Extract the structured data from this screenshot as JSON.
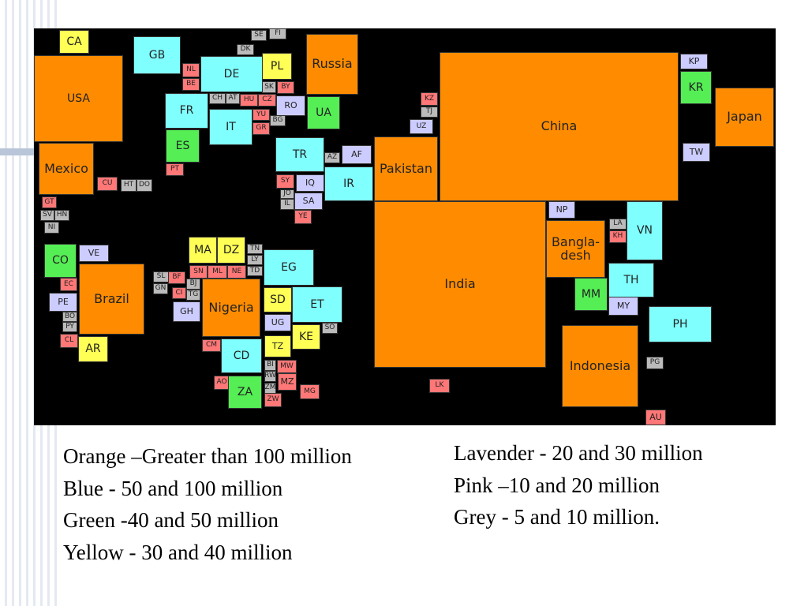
{
  "colors": {
    "orange": "#ff8c00",
    "blue": "#80ffff",
    "green": "#55ee55",
    "yellow": "#ffff55",
    "lavender": "#ccccff",
    "pink": "#ff7777",
    "grey": "#bbbbbb"
  },
  "countries": [
    {
      "code": "CA",
      "cat": "yellow"
    },
    {
      "code": "USA",
      "cat": "orange"
    },
    {
      "code": "Mexico",
      "cat": "orange"
    },
    {
      "code": "CU",
      "cat": "pink"
    },
    {
      "code": "HT",
      "cat": "grey"
    },
    {
      "code": "DO",
      "cat": "grey"
    },
    {
      "code": "GT",
      "cat": "pink"
    },
    {
      "code": "SV",
      "cat": "grey"
    },
    {
      "code": "HN",
      "cat": "grey"
    },
    {
      "code": "NI",
      "cat": "grey"
    },
    {
      "code": "CO",
      "cat": "green"
    },
    {
      "code": "VE",
      "cat": "lavender"
    },
    {
      "code": "EC",
      "cat": "pink"
    },
    {
      "code": "PE",
      "cat": "lavender"
    },
    {
      "code": "BO",
      "cat": "grey"
    },
    {
      "code": "PY",
      "cat": "grey"
    },
    {
      "code": "CL",
      "cat": "pink"
    },
    {
      "code": "Brazil",
      "cat": "orange"
    },
    {
      "code": "AR",
      "cat": "yellow"
    },
    {
      "code": "GB",
      "cat": "blue"
    },
    {
      "code": "NL",
      "cat": "pink"
    },
    {
      "code": "BE",
      "cat": "pink"
    },
    {
      "code": "DE",
      "cat": "blue"
    },
    {
      "code": "FR",
      "cat": "blue"
    },
    {
      "code": "ES",
      "cat": "green"
    },
    {
      "code": "PT",
      "cat": "pink"
    },
    {
      "code": "CH",
      "cat": "grey"
    },
    {
      "code": "AT",
      "cat": "grey"
    },
    {
      "code": "IT",
      "cat": "blue"
    },
    {
      "code": "SE",
      "cat": "grey"
    },
    {
      "code": "FI",
      "cat": "grey"
    },
    {
      "code": "DK",
      "cat": "grey"
    },
    {
      "code": "PL",
      "cat": "yellow"
    },
    {
      "code": "SK",
      "cat": "grey"
    },
    {
      "code": "BY",
      "cat": "pink"
    },
    {
      "code": "HU",
      "cat": "pink"
    },
    {
      "code": "CZ",
      "cat": "pink"
    },
    {
      "code": "RO",
      "cat": "lavender"
    },
    {
      "code": "YU",
      "cat": "pink"
    },
    {
      "code": "BG",
      "cat": "grey"
    },
    {
      "code": "GR",
      "cat": "pink"
    },
    {
      "code": "Russia",
      "cat": "orange"
    },
    {
      "code": "UA",
      "cat": "green"
    },
    {
      "code": "KZ",
      "cat": "pink"
    },
    {
      "code": "TJ",
      "cat": "grey"
    },
    {
      "code": "UZ",
      "cat": "lavender"
    },
    {
      "code": "TR",
      "cat": "blue"
    },
    {
      "code": "AZ",
      "cat": "grey"
    },
    {
      "code": "AF",
      "cat": "lavender"
    },
    {
      "code": "SY",
      "cat": "pink"
    },
    {
      "code": "IQ",
      "cat": "lavender"
    },
    {
      "code": "IR",
      "cat": "blue"
    },
    {
      "code": "JO",
      "cat": "grey"
    },
    {
      "code": "IL",
      "cat": "grey"
    },
    {
      "code": "SA",
      "cat": "lavender"
    },
    {
      "code": "YE",
      "cat": "pink"
    },
    {
      "code": "Pakistan",
      "cat": "orange"
    },
    {
      "code": "China",
      "cat": "orange"
    },
    {
      "code": "KP",
      "cat": "lavender"
    },
    {
      "code": "KR",
      "cat": "green"
    },
    {
      "code": "Japan",
      "cat": "orange"
    },
    {
      "code": "TW",
      "cat": "lavender"
    },
    {
      "code": "MA",
      "cat": "yellow"
    },
    {
      "code": "DZ",
      "cat": "yellow"
    },
    {
      "code": "TN",
      "cat": "grey"
    },
    {
      "code": "LY",
      "cat": "grey"
    },
    {
      "code": "TD",
      "cat": "grey"
    },
    {
      "code": "SN",
      "cat": "pink"
    },
    {
      "code": "ML",
      "cat": "pink"
    },
    {
      "code": "NE",
      "cat": "pink"
    },
    {
      "code": "EG",
      "cat": "blue"
    },
    {
      "code": "SL",
      "cat": "grey"
    },
    {
      "code": "BF",
      "cat": "pink"
    },
    {
      "code": "BJ",
      "cat": "grey"
    },
    {
      "code": "GN",
      "cat": "grey"
    },
    {
      "code": "CI",
      "cat": "pink"
    },
    {
      "code": "TG",
      "cat": "grey"
    },
    {
      "code": "GH",
      "cat": "lavender"
    },
    {
      "code": "Nigeria",
      "cat": "orange"
    },
    {
      "code": "SD",
      "cat": "yellow"
    },
    {
      "code": "ET",
      "cat": "blue"
    },
    {
      "code": "UG",
      "cat": "lavender"
    },
    {
      "code": "SO",
      "cat": "grey"
    },
    {
      "code": "KE",
      "cat": "yellow"
    },
    {
      "code": "TZ",
      "cat": "yellow"
    },
    {
      "code": "CM",
      "cat": "pink"
    },
    {
      "code": "CD",
      "cat": "blue"
    },
    {
      "code": "BI",
      "cat": "grey"
    },
    {
      "code": "RW",
      "cat": "grey"
    },
    {
      "code": "MW",
      "cat": "pink"
    },
    {
      "code": "AO",
      "cat": "pink"
    },
    {
      "code": "ZA",
      "cat": "green"
    },
    {
      "code": "ZM",
      "cat": "grey"
    },
    {
      "code": "MZ",
      "cat": "pink"
    },
    {
      "code": "ZW",
      "cat": "pink"
    },
    {
      "code": "MG",
      "cat": "pink"
    },
    {
      "code": "India",
      "cat": "orange"
    },
    {
      "code": "NP",
      "cat": "lavender"
    },
    {
      "code": "Bangla-\ndesh",
      "cat": "orange"
    },
    {
      "code": "LA",
      "cat": "grey"
    },
    {
      "code": "KH",
      "cat": "pink"
    },
    {
      "code": "VN",
      "cat": "blue"
    },
    {
      "code": "MM",
      "cat": "green"
    },
    {
      "code": "TH",
      "cat": "blue"
    },
    {
      "code": "MY",
      "cat": "lavender"
    },
    {
      "code": "PH",
      "cat": "blue"
    },
    {
      "code": "Indonesia",
      "cat": "orange"
    },
    {
      "code": "PG",
      "cat": "grey"
    },
    {
      "code": "LK",
      "cat": "pink"
    },
    {
      "code": "AU",
      "cat": "pink"
    }
  ],
  "legend": {
    "left": [
      "Orange –Greater than 100 million",
      "Blue - 50 and 100 million",
      "Green -40 and 50 million",
      "Yellow - 30 and 40 million"
    ],
    "right": [
      "Lavender - 20 and 30 million",
      "Pink –10 and 20 million",
      "Grey - 5 and 10 million."
    ]
  }
}
